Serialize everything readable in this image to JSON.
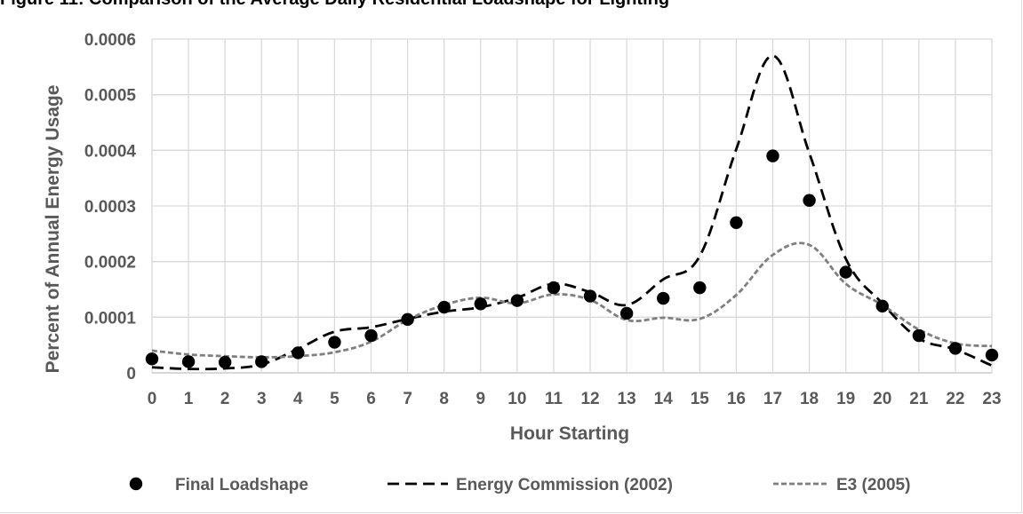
{
  "figure_title": "Figure 11: Comparison of the Average Daily Residential Loadshape for Lighting",
  "chart_data": {
    "type": "line",
    "xlabel": "Hour Starting",
    "ylabel": "Percent of Annual Energy Usage",
    "x": [
      "0",
      "1",
      "2",
      "3",
      "4",
      "5",
      "6",
      "7",
      "8",
      "9",
      "10",
      "11",
      "12",
      "13",
      "14",
      "15",
      "16",
      "17",
      "18",
      "19",
      "20",
      "21",
      "22",
      "23"
    ],
    "ylim": [
      0,
      0.0006
    ],
    "yticks": [
      "0",
      "0.0001",
      "0.0002",
      "0.0003",
      "0.0004",
      "0.0005",
      "0.0006"
    ],
    "grid": true,
    "legend_position": "bottom",
    "series": [
      {
        "name": "Final Loadshape",
        "style": "markers",
        "color": "#000000",
        "values": [
          2.5e-05,
          2e-05,
          1.9e-05,
          2e-05,
          3.6e-05,
          5.5e-05,
          6.7e-05,
          9.6e-05,
          0.000118,
          0.000124,
          0.00013,
          0.000153,
          0.000138,
          0.000107,
          0.000134,
          0.000153,
          0.00027,
          0.00039,
          0.00031,
          0.000181,
          0.00012,
          6.7e-05,
          4.4e-05,
          3.2e-05
        ]
      },
      {
        "name": "Energy Commission (2002)",
        "style": "dashed",
        "color": "#000000",
        "values": [
          1e-05,
          7e-06,
          8e-06,
          1.5e-05,
          4.3e-05,
          7.4e-05,
          8.2e-05,
          9.7e-05,
          0.00011,
          0.000118,
          0.000135,
          0.00016,
          0.000145,
          0.000122,
          0.000168,
          0.00021,
          0.000402,
          0.00057,
          0.000395,
          0.000205,
          0.000125,
          6.2e-05,
          4.2e-05,
          1.3e-05
        ]
      },
      {
        "name": "E3 (2005)",
        "style": "dotted",
        "color": "#7f7f7f",
        "values": [
          4e-05,
          3.3e-05,
          3e-05,
          2.8e-05,
          3e-05,
          3.7e-05,
          5.6e-05,
          9.5e-05,
          0.000122,
          0.000135,
          0.000125,
          0.000141,
          0.000131,
          9.5e-05,
          9.9e-05,
          9.7e-05,
          0.00014,
          0.000212,
          0.00023,
          0.00016,
          0.000122,
          7.8e-05,
          5.3e-05,
          4.8e-05
        ]
      }
    ]
  }
}
